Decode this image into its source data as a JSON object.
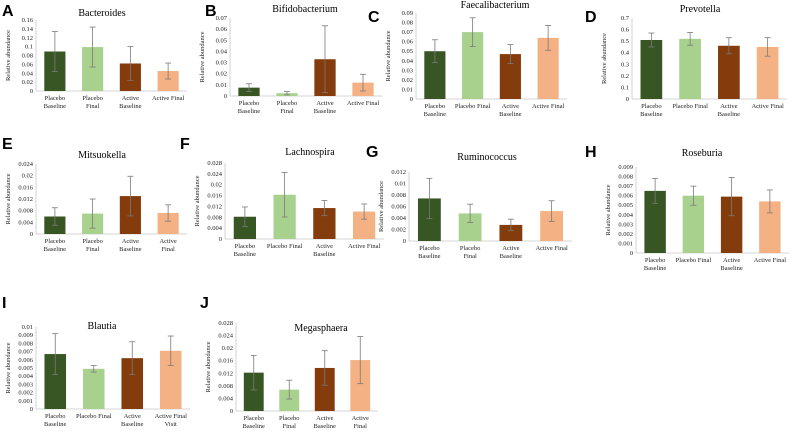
{
  "figure": {
    "colors": {
      "placebo_baseline": "#375623",
      "placebo_final": "#a9d18e",
      "active_baseline": "#843c0c",
      "active_final": "#f4b183"
    }
  },
  "chart_data": [
    {
      "letter": "A",
      "title": "Bacteroides",
      "type": "bar",
      "ylabel": "Relative abundance",
      "yticks": [
        "0",
        "0.02",
        "0.04",
        "0.06",
        "0.08",
        "0.1",
        "0.12",
        "0.14",
        "0.16"
      ],
      "ylim": [
        0,
        0.16
      ],
      "categories": [
        [
          "Placebo",
          "Baseline"
        ],
        [
          "Placebo",
          "Final"
        ],
        [
          "Active",
          "Baseline"
        ],
        [
          "Active Final"
        ]
      ],
      "values": [
        0.089,
        0.099,
        0.062,
        0.045
      ],
      "errors": [
        0.045,
        0.045,
        0.038,
        0.018
      ]
    },
    {
      "letter": "B",
      "title": "Bifidobacterium",
      "type": "bar",
      "ylabel": "Relative abundance",
      "yticks": [
        "0",
        "0.01",
        "0.02",
        "0.03",
        "0.04",
        "0.05",
        "0.06",
        "0.07"
      ],
      "ylim": [
        0,
        0.07
      ],
      "categories": [
        [
          "Placebo",
          "Baseline"
        ],
        [
          "Placebo",
          "Final"
        ],
        [
          "Active",
          "Baseline"
        ],
        [
          "Active Final"
        ]
      ],
      "values": [
        0.0075,
        0.0025,
        0.033,
        0.012
      ],
      "errors": [
        0.0035,
        0.0015,
        0.03,
        0.0075
      ]
    },
    {
      "letter": "C",
      "title": "Faecalibacterium",
      "type": "bar",
      "ylabel": "Relative abundance",
      "yticks": [
        "0",
        "0.01",
        "0.02",
        "0.03",
        "0.04",
        "0.05",
        "0.06",
        "0.07",
        "0.08",
        "0.09"
      ],
      "ylim": [
        0,
        0.09
      ],
      "categories": [
        [
          "Placebo",
          "Baseline"
        ],
        [
          "Placebo Final"
        ],
        [
          "Active",
          "Baseline"
        ],
        [
          "Active Final"
        ]
      ],
      "values": [
        0.05,
        0.07,
        0.047,
        0.064
      ],
      "errors": [
        0.012,
        0.015,
        0.01,
        0.013
      ]
    },
    {
      "letter": "D",
      "title": "Prevotella",
      "type": "bar",
      "ylabel": "Relative abundance",
      "yticks": [
        "0",
        "0.1",
        "0.2",
        "0.3",
        "0.4",
        "0.5",
        "0.6",
        "0.7"
      ],
      "ylim": [
        0,
        0.7
      ],
      "categories": [
        [
          "Placebo",
          "Baseline"
        ],
        [
          "Placebo Final"
        ],
        [
          "Active",
          "Baseline"
        ],
        [
          "Active Final"
        ]
      ],
      "values": [
        0.51,
        0.52,
        0.46,
        0.45
      ],
      "errors": [
        0.06,
        0.055,
        0.07,
        0.08
      ]
    },
    {
      "letter": "E",
      "title": "Mitsuokella",
      "type": "bar",
      "ylabel": "Relative abundance",
      "yticks": [
        "0",
        "0.004",
        "0.008",
        "0.012",
        "0.016",
        "0.02",
        "0.024"
      ],
      "ylim": [
        0,
        0.024
      ],
      "categories": [
        [
          "Placebo",
          "Baseline"
        ],
        [
          "Placebo",
          "Final"
        ],
        [
          "Active",
          "Baseline"
        ],
        [
          "Active",
          "Final"
        ]
      ],
      "values": [
        0.006,
        0.007,
        0.013,
        0.0072
      ],
      "errors": [
        0.003,
        0.005,
        0.0068,
        0.0028
      ]
    },
    {
      "letter": "F",
      "title": "Lachnospira",
      "type": "bar",
      "ylabel": "Relative abundance",
      "yticks": [
        "0",
        "0.004",
        "0.008",
        "0.012",
        "0.016",
        "0.02",
        "0.024",
        "0.028"
      ],
      "ylim": [
        0,
        0.028
      ],
      "categories": [
        [
          "Placebo",
          "Baseline"
        ],
        [
          "Placebo Final"
        ],
        [
          "Active",
          "Baseline"
        ],
        [
          "Active Final"
        ]
      ],
      "values": [
        0.0082,
        0.0163,
        0.0114,
        0.0101
      ],
      "errors": [
        0.0036,
        0.0082,
        0.0028,
        0.0028
      ]
    },
    {
      "letter": "G",
      "title": "Ruminococcus",
      "type": "bar",
      "ylabel": "Relative abundance",
      "yticks": [
        "0",
        "0.002",
        "0.004",
        "0.006",
        "0.008",
        "0.01",
        "0.012"
      ],
      "ylim": [
        0,
        0.012
      ],
      "categories": [
        [
          "Placebo",
          "Baseline"
        ],
        [
          "Placebo",
          "Final"
        ],
        [
          "Active",
          "Baseline"
        ],
        [
          "Active Final"
        ]
      ],
      "values": [
        0.0074,
        0.0048,
        0.0028,
        0.0052
      ],
      "errors": [
        0.0035,
        0.0016,
        0.001,
        0.0018
      ]
    },
    {
      "letter": "H",
      "title": "Roseburia",
      "type": "bar",
      "ylabel": "Relative abundance",
      "yticks": [
        "0",
        "0.001",
        "0.002",
        "0.003",
        "0.004",
        "0.005",
        "0.006",
        "0.007",
        "0.008",
        "0.009"
      ],
      "ylim": [
        0,
        0.009
      ],
      "categories": [
        [
          "Placebo",
          "Baseline"
        ],
        [
          "Placebo Final"
        ],
        [
          "Active",
          "Baseline"
        ],
        [
          "Active Final"
        ]
      ],
      "values": [
        0.0065,
        0.006,
        0.0059,
        0.0054
      ],
      "errors": [
        0.0013,
        0.001,
        0.002,
        0.0012
      ]
    },
    {
      "letter": "I",
      "title": "Blautia",
      "type": "bar",
      "ylabel": "Relative abundance",
      "yticks": [
        "0",
        "0.001",
        "0.002",
        "0.003",
        "0.004",
        "0.005",
        "0.006",
        "0.007",
        "0.008",
        "0.009",
        "0.01"
      ],
      "ylim": [
        0,
        0.01
      ],
      "categories": [
        [
          "Placebo",
          "Baseline"
        ],
        [
          "Placebo Final"
        ],
        [
          "Active",
          "Baseline"
        ],
        [
          "Active Final",
          "Visit"
        ]
      ],
      "values": [
        0.0067,
        0.0049,
        0.0062,
        0.0071
      ],
      "errors": [
        0.0025,
        0.0004,
        0.002,
        0.0018
      ]
    },
    {
      "letter": "J",
      "title": "Megasphaera",
      "type": "bar",
      "ylabel": "Relative abundance",
      "yticks": [
        "0",
        "0.004",
        "0.008",
        "0.012",
        "0.016",
        "0.02",
        "0.024",
        "0.028"
      ],
      "ylim": [
        0,
        0.028
      ],
      "categories": [
        [
          "Placebo",
          "Baseline"
        ],
        [
          "Placebo",
          "Final"
        ],
        [
          "Active",
          "Baseline"
        ],
        [
          "Active",
          "Final"
        ]
      ],
      "values": [
        0.0122,
        0.0068,
        0.0137,
        0.0162
      ],
      "errors": [
        0.0055,
        0.003,
        0.0055,
        0.0075
      ]
    }
  ]
}
